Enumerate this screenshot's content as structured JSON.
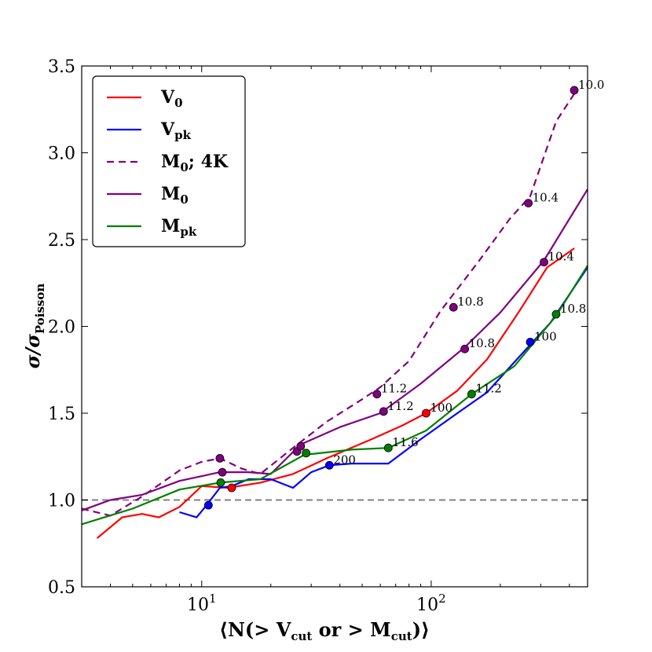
{
  "chart_data": {
    "type": "line",
    "xscale": "log",
    "xlim": [
      3.0,
      480
    ],
    "ylim": [
      0.5,
      3.5
    ],
    "xlabel": {
      "pre": "⟨N(> V",
      "sub1": "cut",
      "mid": " or > M",
      "sub2": "cut",
      "post": ")⟩"
    },
    "ylabel": {
      "main": "σ/σ",
      "sub": "Poisson"
    },
    "x_ticks": [
      {
        "value": 10,
        "base": "10",
        "exp": "1"
      },
      {
        "value": 100,
        "base": "10",
        "exp": "2"
      }
    ],
    "y_ticks": [
      {
        "value": 0.5,
        "label": "0.5"
      },
      {
        "value": 1.0,
        "label": "1.0"
      },
      {
        "value": 1.5,
        "label": "1.5"
      },
      {
        "value": 2.0,
        "label": "2.0"
      },
      {
        "value": 2.5,
        "label": "2.5"
      },
      {
        "value": 3.0,
        "label": "3.0"
      },
      {
        "value": 3.5,
        "label": "3.5"
      }
    ],
    "reference_line": {
      "y": 1.0,
      "color": "#808080",
      "dashed": true
    },
    "legend": "top-left",
    "series": [
      {
        "name_main": "V",
        "name_sub": "0",
        "color": "#ff0000",
        "dashed": false,
        "x": [
          3.5,
          4.5,
          5.5,
          6.5,
          8,
          10,
          13,
          18,
          25,
          35,
          55,
          75,
          95,
          130,
          175,
          240,
          320,
          420
        ],
        "y": [
          0.78,
          0.9,
          0.92,
          0.9,
          0.96,
          1.08,
          1.07,
          1.1,
          1.15,
          1.24,
          1.35,
          1.43,
          1.5,
          1.63,
          1.81,
          2.08,
          2.34,
          2.45
        ],
        "markers": [
          {
            "x": 13.5,
            "y": 1.07,
            "label": ""
          },
          {
            "x": 95,
            "y": 1.5,
            "label": "100"
          }
        ]
      },
      {
        "name_main": "V",
        "name_sub": "pk",
        "color": "#0000ff",
        "dashed": false,
        "x": [
          8,
          9.5,
          10.5,
          12,
          13.5,
          16,
          20,
          25,
          30,
          36,
          45,
          65,
          90,
          130,
          175,
          240,
          330,
          480
        ],
        "y": [
          0.93,
          0.9,
          0.97,
          1.07,
          1.08,
          1.12,
          1.12,
          1.07,
          1.16,
          1.2,
          1.21,
          1.21,
          1.35,
          1.5,
          1.62,
          1.82,
          2.02,
          2.34
        ],
        "markers": [
          {
            "x": 10.7,
            "y": 0.97,
            "label": ""
          },
          {
            "x": 36,
            "y": 1.2,
            "label": "200"
          },
          {
            "x": 270,
            "y": 1.91,
            "label": "100"
          }
        ]
      },
      {
        "name_main": "M",
        "name_sub": "0",
        "name_post": "; 4K",
        "color": "#800080",
        "dashed": true,
        "x": [
          3.0,
          4.0,
          5.5,
          8,
          10,
          12,
          15,
          18,
          25,
          35,
          50,
          60,
          80,
          110,
          160,
          220,
          270,
          350,
          430
        ],
        "y": [
          0.95,
          0.91,
          1.02,
          1.17,
          1.22,
          1.24,
          1.18,
          1.15,
          1.3,
          1.45,
          1.58,
          1.65,
          1.8,
          2.09,
          2.37,
          2.62,
          2.75,
          3.18,
          3.36
        ],
        "markers": [
          {
            "x": 12,
            "y": 1.24,
            "label": ""
          },
          {
            "x": 26,
            "y": 1.28,
            "label": ""
          },
          {
            "x": 58,
            "y": 1.61,
            "label": "11.2"
          },
          {
            "x": 125,
            "y": 2.11,
            "label": "10.8"
          },
          {
            "x": 265,
            "y": 2.71,
            "label": "10.4"
          },
          {
            "x": 420,
            "y": 3.36,
            "label": "10.0"
          }
        ]
      },
      {
        "name_main": "M",
        "name_sub": "0",
        "color": "#800080",
        "dashed": false,
        "x": [
          3.0,
          4.0,
          5.5,
          8,
          12,
          16,
          20,
          27,
          40,
          60,
          90,
          140,
          200,
          310,
          480
        ],
        "y": [
          0.94,
          1.0,
          1.03,
          1.11,
          1.16,
          1.16,
          1.15,
          1.32,
          1.42,
          1.5,
          1.67,
          1.88,
          2.08,
          2.38,
          2.79
        ],
        "markers": [
          {
            "x": 12.3,
            "y": 1.16,
            "label": ""
          },
          {
            "x": 27,
            "y": 1.31,
            "label": ""
          },
          {
            "x": 62,
            "y": 1.51,
            "label": "11.2"
          },
          {
            "x": 140,
            "y": 1.87,
            "label": "10.8"
          },
          {
            "x": 310,
            "y": 2.37,
            "label": "10.4"
          }
        ]
      },
      {
        "name_main": "M",
        "name_sub": "pk",
        "color": "#008000",
        "dashed": false,
        "x": [
          3.0,
          5.0,
          8,
          12,
          18,
          28,
          45,
          65,
          95,
          150,
          230,
          350,
          480
        ],
        "y": [
          0.86,
          0.95,
          1.06,
          1.1,
          1.12,
          1.26,
          1.29,
          1.3,
          1.4,
          1.61,
          1.77,
          2.06,
          2.35
        ],
        "markers": [
          {
            "x": 12.1,
            "y": 1.1,
            "label": ""
          },
          {
            "x": 28.5,
            "y": 1.27,
            "label": ""
          },
          {
            "x": 65,
            "y": 1.3,
            "label": "11.6"
          },
          {
            "x": 150,
            "y": 1.61,
            "label": "11.2"
          },
          {
            "x": 350,
            "y": 2.07,
            "label": "10.8"
          }
        ]
      }
    ]
  }
}
